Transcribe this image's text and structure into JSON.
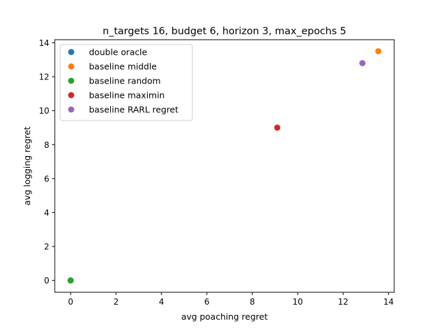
{
  "chart_data": {
    "type": "scatter",
    "title": "n_targets 16, budget 6, horizon 3, max_epochs 5",
    "xlabel": "avg poaching regret",
    "ylabel": "avg logging regret",
    "xlim": [
      -0.7,
      14.25
    ],
    "ylim": [
      -0.7,
      14.18
    ],
    "xticks": [
      0,
      2,
      4,
      6,
      8,
      10,
      12,
      14
    ],
    "yticks": [
      0,
      2,
      4,
      6,
      8,
      10,
      12,
      14
    ],
    "grid": false,
    "legend_position": "upper left",
    "series": [
      {
        "name": "double oracle",
        "color": "#1f77b4",
        "x": [
          0
        ],
        "y": [
          0
        ]
      },
      {
        "name": "baseline middle",
        "color": "#ff7f0e",
        "x": [
          13.55
        ],
        "y": [
          13.5
        ]
      },
      {
        "name": "baseline random",
        "color": "#2ca02c",
        "x": [
          0
        ],
        "y": [
          0
        ]
      },
      {
        "name": "baseline maximin",
        "color": "#d62728",
        "x": [
          9.1
        ],
        "y": [
          9.0
        ]
      },
      {
        "name": "baseline RARL regret",
        "color": "#9467bd",
        "x": [
          12.85
        ],
        "y": [
          12.8
        ]
      }
    ]
  }
}
